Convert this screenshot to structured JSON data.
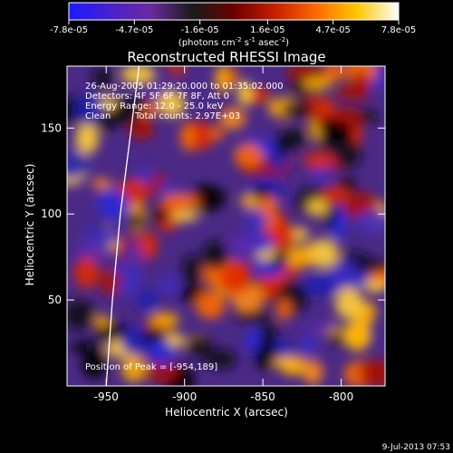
{
  "colorbar": {
    "tick_labels": [
      "-7.8e-05",
      "-4.7e-05",
      "-1.6e-05",
      "1.6e-05",
      "4.7e-05",
      "7.8e-05"
    ],
    "tick_values": [
      -7.8e-05,
      -4.7e-05,
      -1.6e-05,
      1.6e-05,
      4.7e-05,
      7.8e-05
    ],
    "range": [
      -7.8e-05,
      7.8e-05
    ],
    "units_main": "(photons cm",
    "units_sup1": "-2",
    "units_mid": " s",
    "units_sup2": "-1",
    "units_end": " asec",
    "units_sup3": "-2",
    "units_close": ")",
    "stops": [
      "#1a1aff",
      "#4a1fd0",
      "#6a2a9e",
      "#1a1a1a",
      "#6a0000",
      "#c81e00",
      "#ff6a00",
      "#ffc800",
      "#ffffff"
    ]
  },
  "chart_data": {
    "type": "heatmap",
    "title": "Reconstructed RHESSI Image",
    "xlabel": "Heliocentric X (arcsec)",
    "ylabel": "Heliocentric Y (arcsec)",
    "xlim": [
      -975,
      -772
    ],
    "ylim": [
      0,
      186
    ],
    "x_ticks": [
      -950,
      -900,
      -850,
      -800
    ],
    "x_tick_labels": [
      "-950",
      "-900",
      "-850",
      "-800"
    ],
    "y_ticks": [
      50,
      100,
      150
    ],
    "y_tick_labels": [
      "50",
      "100",
      "150"
    ],
    "annotations": [
      "26-Aug-2005 01:29:20.000 to 01:35:02.000",
      "Detectors: 4F 5F 6F 7F 8F, Att 0",
      "Energy Range: 12.0 - 25.0 keV",
      "Clean",
      "Total counts: 2.97E+03"
    ],
    "peak_label": "Position of Peak = [-954,189]",
    "peak": [
      -954,
      189
    ],
    "limb_curve": [
      [
        -950,
        0
      ],
      [
        -946,
        50
      ],
      [
        -941,
        100
      ],
      [
        -934,
        150
      ],
      [
        -929,
        186
      ]
    ]
  },
  "footer": {
    "timestamp": "9-Jul-2013 07:53"
  }
}
